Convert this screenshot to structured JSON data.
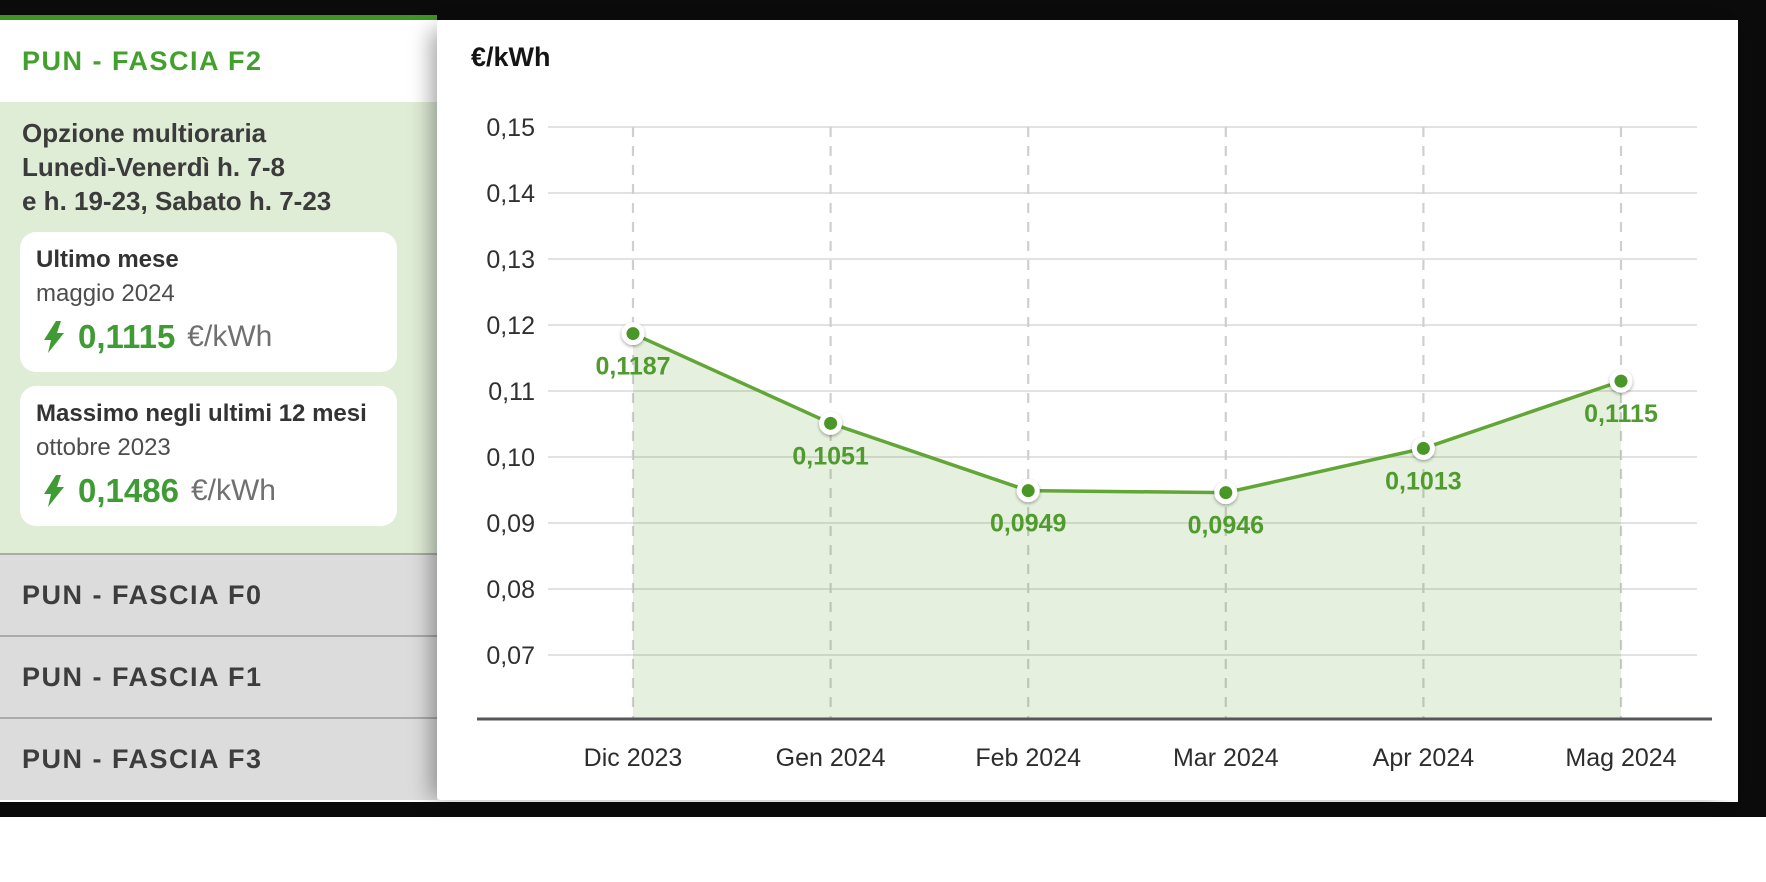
{
  "sidebar": {
    "active_tab": {
      "label": "PUN - FASCIA F2"
    },
    "panel": {
      "heading_lines": [
        "Opzione multioraria",
        "Lunedì-Venerdì h. 7-8",
        "e h. 19-23, Sabato h. 7-23"
      ],
      "stats": [
        {
          "title": "Ultimo mese",
          "period": "maggio 2024",
          "value": "0,1115",
          "unit": "€/kWh"
        },
        {
          "title": "Massimo negli ultimi 12 mesi",
          "period": "ottobre 2023",
          "value": "0,1486",
          "unit": "€/kWh"
        }
      ]
    },
    "tabs": [
      {
        "label": "PUN - FASCIA F0"
      },
      {
        "label": "PUN - FASCIA F1"
      },
      {
        "label": "PUN - FASCIA F3"
      }
    ]
  },
  "chart_data": {
    "type": "area",
    "title": "€/kWh",
    "xlabel": "",
    "ylabel": "€/kWh",
    "categories": [
      "Dic 2023",
      "Gen 2024",
      "Feb 2024",
      "Mar 2024",
      "Apr 2024",
      "Mag 2024"
    ],
    "values": [
      0.1187,
      0.1051,
      0.0949,
      0.0946,
      0.1013,
      0.1115
    ],
    "point_labels": [
      "0,1187",
      "0,1051",
      "0,0949",
      "0,0946",
      "0,1013",
      "0,1115"
    ],
    "yticks": [
      0.15,
      0.14,
      0.13,
      0.12,
      0.11,
      0.1,
      0.09,
      0.08,
      0.07
    ],
    "ytick_labels": [
      "0,15",
      "0,14",
      "0,13",
      "0,12",
      "0,11",
      "0,10",
      "0,09",
      "0,08",
      "0,07"
    ],
    "ylim": [
      0.06,
      0.15
    ],
    "grid": {
      "horizontal": "solid",
      "vertical": "dashed"
    },
    "legend": "none",
    "area_opacity": 0.16,
    "colors": {
      "line": "#61a637",
      "dot": "#4a9727",
      "area": "#5ba433",
      "label": "#4f9b2e"
    }
  },
  "colors": {
    "accent_green": "#3f9c35",
    "sidebar_accent_line": "#3f9425",
    "panel_green": "#dfecd6",
    "inactive_tab_gray": "#dcdcdc",
    "frame_black": "#0b0b0b"
  }
}
